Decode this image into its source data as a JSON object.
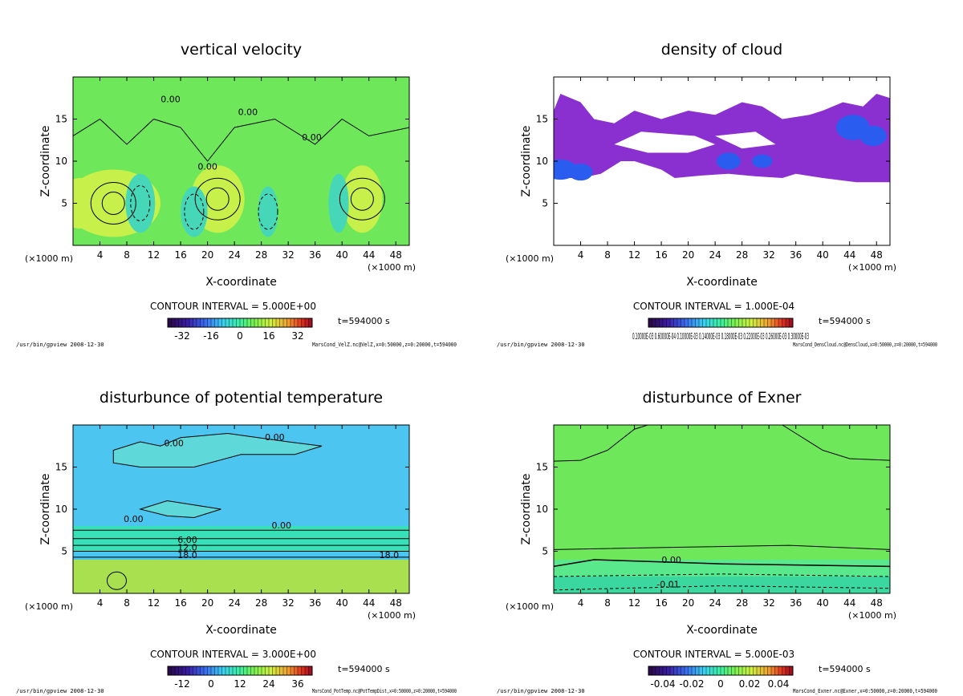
{
  "domain": "Chart",
  "common": {
    "xlabel": "X-coordinate",
    "ylabel": "Z-coordinate",
    "x_unit": "(×1000 m)",
    "x_ticks": [
      4,
      8,
      12,
      16,
      20,
      24,
      28,
      32,
      36,
      40,
      44,
      48
    ],
    "y_ticks": [
      5,
      10,
      15
    ],
    "xlim": [
      0,
      50
    ],
    "ylim": [
      0,
      20
    ],
    "time_label": "t=594000 s",
    "program_label": "/usr/bin/gpview  2008-12-30"
  },
  "chart_data": [
    {
      "type": "heatmap",
      "title": "vertical velocity",
      "contour_interval": "CONTOUR INTERVAL = 5.000E+00",
      "colorbar_ticks": [
        "-32",
        "-16",
        "0",
        "16",
        "32"
      ],
      "colorbar_range": [
        -40,
        40
      ],
      "file_label": "MarsCond_VelZ.nc@VelZ,x=0:50000,z=0:20000,t=594000",
      "contour_labels": [
        "0.00",
        "0.00",
        "0.00",
        "0.00"
      ],
      "colors": {
        "background": "#6ee85a",
        "positive": "#c8f04a",
        "negative": "#46d6b8"
      }
    },
    {
      "type": "heatmap",
      "title": "density of cloud",
      "contour_interval": "CONTOUR INTERVAL = 1.000E-04",
      "colorbar_ticks": [
        "0.10000E-03 0.60000E-04 0.10000E-03 0.14000E-03 0.18000E-03 0.22000E-03 0.26000E-03 0.30000E-03"
      ],
      "file_label": "MarsCond_DensCloud.nc@DensCloud,x=0:50000,z=0:20000,t=594000",
      "cloud_layer_z_range": [
        7.5,
        18
      ],
      "colors": {
        "cloud": "#8a2fd0",
        "dense": "#2a5cf0"
      }
    },
    {
      "type": "heatmap",
      "title": "disturbunce of potential temperature",
      "contour_interval": "CONTOUR INTERVAL = 3.000E+00",
      "colorbar_ticks": [
        "-12",
        "0",
        "12",
        "24",
        "36"
      ],
      "colorbar_range": [
        -18,
        42
      ],
      "file_label": "MarsCond_PotTemp.nc@PotTempDist,x=0:50000,z=0:20000,t=594000",
      "contour_labels": [
        "0.00",
        "0.00",
        "0.00",
        "0.00",
        "6.00",
        "12.0",
        "18.0",
        "18.0"
      ],
      "colors": {
        "upper": "#4cc6f0",
        "lower": "#a8e050",
        "middle": "#38e0b8"
      }
    },
    {
      "type": "heatmap",
      "title": "disturbunce of Exner",
      "contour_interval": "CONTOUR INTERVAL = 5.000E-03",
      "colorbar_ticks": [
        "-0.04",
        "-0.02",
        "0",
        "0.02",
        "0.04"
      ],
      "colorbar_range": [
        -0.05,
        0.05
      ],
      "file_label": "MarsCond_Exner.nc@Exner,x=0:50000,z=0:20000,t=594000",
      "contour_labels": [
        "0.00",
        "-0.01"
      ],
      "colors": {
        "background": "#6ee85a",
        "low": "#3ad8a0"
      }
    }
  ]
}
